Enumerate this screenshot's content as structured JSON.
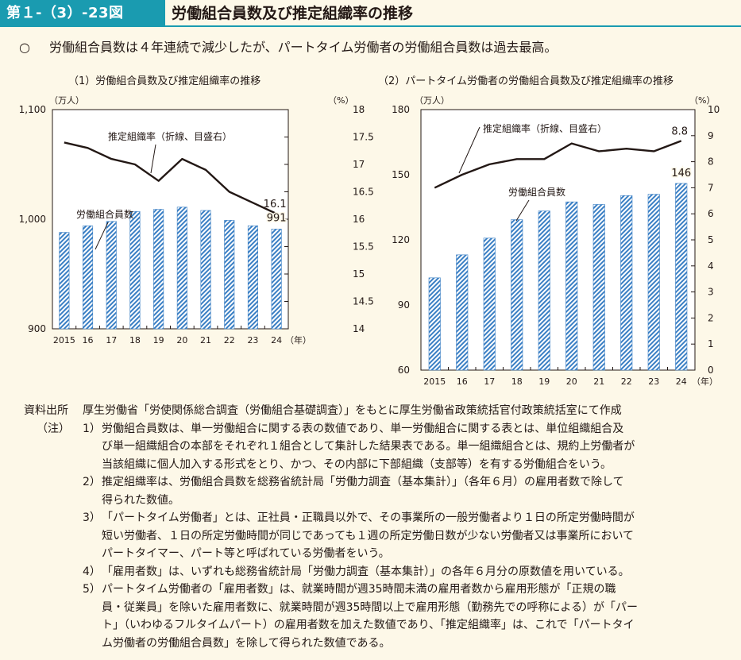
{
  "header": {
    "figure_number": "第１-（3）-23図",
    "title": "労働組合員数及び推定組織率の推移"
  },
  "summary": {
    "bullet": "○",
    "text": "労働組合員数は４年連続で減少したが、パートタイム労働者の労働組合員数は過去最高。"
  },
  "colors": {
    "accent": "#1a9bb0",
    "bar_stripe": "#3a7fc4",
    "line": "#231815",
    "background": "#fdf8e8"
  },
  "chart_data": [
    {
      "type": "bar+line",
      "title": "（1）労働組合員数及び推定組織率の推移",
      "x_unit": "（年）",
      "categories": [
        "2015",
        "16",
        "17",
        "18",
        "19",
        "20",
        "21",
        "22",
        "23",
        "24"
      ],
      "left_axis": {
        "unit": "（万人）",
        "ylim": [
          900,
          1100
        ],
        "ticks": [
          "900",
          "1,000",
          "1,100"
        ]
      },
      "right_axis": {
        "unit": "（%）",
        "ylim": [
          14,
          18
        ],
        "ticks": [
          "14",
          "14.5",
          "15",
          "15.5",
          "16",
          "16.5",
          "17",
          "17.5",
          "18"
        ]
      },
      "series": [
        {
          "name": "労働組合員数",
          "axis": "left",
          "kind": "bar",
          "values": [
            988,
            994,
            998,
            1007,
            1009,
            1011,
            1008,
            999,
            994,
            991
          ]
        },
        {
          "name": "推定組織率",
          "axis": "right",
          "kind": "line",
          "values": [
            17.4,
            17.3,
            17.1,
            17.0,
            16.7,
            17.1,
            16.9,
            16.5,
            16.3,
            16.1
          ]
        }
      ],
      "annotations": {
        "line_label": "推定組織率（折線、目盛右）",
        "bar_label": "労働組合員数",
        "line_last_value": "16.1",
        "bar_last_value": "991"
      }
    },
    {
      "type": "bar+line",
      "title": "（2）パートタイム労働者の労働組合員数及び推定組織率の推移",
      "x_unit": "（年）",
      "categories": [
        "2015",
        "16",
        "17",
        "18",
        "19",
        "20",
        "21",
        "22",
        "23",
        "24"
      ],
      "left_axis": {
        "unit": "（万人）",
        "ylim": [
          60,
          180
        ],
        "ticks": [
          "60",
          "90",
          "120",
          "150",
          "180"
        ]
      },
      "right_axis": {
        "unit": "（%）",
        "ylim": [
          0,
          10
        ],
        "ticks": [
          "0",
          "1",
          "2",
          "3",
          "4",
          "5",
          "6",
          "7",
          "8",
          "9",
          "10"
        ]
      },
      "series": [
        {
          "name": "労働組合員数",
          "axis": "left",
          "kind": "bar",
          "values": [
            102.5,
            113.1,
            120.8,
            129.3,
            133.3,
            137.5,
            136.3,
            140.4,
            141.0,
            146.0
          ]
        },
        {
          "name": "推定組織率",
          "axis": "right",
          "kind": "line",
          "values": [
            7.0,
            7.5,
            7.9,
            8.1,
            8.1,
            8.7,
            8.4,
            8.5,
            8.4,
            8.8
          ]
        }
      ],
      "annotations": {
        "line_label": "推定組織率（折線、目盛右）",
        "bar_label": "労働組合員数",
        "line_last_value": "8.8",
        "bar_last_value": "146"
      }
    }
  ],
  "notes": {
    "source_label": "資料出所",
    "source_text": "厚生労働省「労使関係総合調査（労働組合基礎調査）」をもとに厚生労働省政策統括官付政策統括室にて作成",
    "notes_label": "（注）",
    "items": [
      {
        "num": "1）",
        "lines": [
          "労働組合員数は、単一労働組合に関する表の数値であり、単一労働組合に関する表とは、単位組織組合及",
          "び単一組織組合の本部をそれぞれ１組合として集計した結果表である。単一組織組合とは、規約上労働者が",
          "当該組織に個人加入する形式をとり、かつ、その内部に下部組織（支部等）を有する労働組合をいう。"
        ]
      },
      {
        "num": "2）",
        "lines": [
          "推定組織率は、労働組合員数を総務省統計局「労働力調査（基本集計）」（各年６月）の雇用者数で除して",
          "得られた数値。"
        ]
      },
      {
        "num": "3）",
        "lines": [
          "「パートタイム労働者」とは、正社員・正職員以外で、その事業所の一般労働者より１日の所定労働時間が",
          "短い労働者、１日の所定労働時間が同じであっても１週の所定労働日数が少ない労働者又は事業所において",
          "パートタイマー、パート等と呼ばれている労働者をいう。"
        ]
      },
      {
        "num": "4）",
        "lines": [
          "「雇用者数」は、いずれも総務省統計局「労働力調査（基本集計）」の各年６月分の原数値を用いている。"
        ]
      },
      {
        "num": "5）",
        "lines": [
          "パートタイム労働者の「雇用者数」は、就業時間が週35時間未満の雇用者数から雇用形態が「正規の職",
          "員・従業員」を除いた雇用者数に、就業時間が週35時間以上で雇用形態（勤務先での呼称による）が「パー",
          "ト」（いわゆるフルタイムパート）の雇用者数を加えた数値であり、「推定組織率」は、これで「パートタイ",
          "ム労働者の労働組合員数」を除して得られた数値である。"
        ]
      }
    ]
  }
}
